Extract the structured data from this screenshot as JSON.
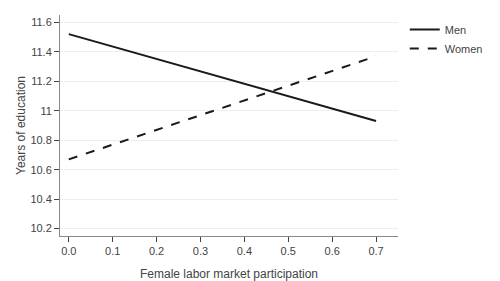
{
  "chart_data": {
    "type": "line",
    "xlabel": "Female labor market participation",
    "ylabel": "Years of education",
    "series": [
      {
        "name": "Men",
        "color": "#1a1a1a",
        "line_style": "solid",
        "x": [
          0,
          0.7
        ],
        "values": [
          11.52,
          10.93
        ]
      },
      {
        "name": "Women",
        "color": "#1a1a1a",
        "line_style": "dashed",
        "x": [
          0,
          0.7
        ],
        "values": [
          10.67,
          11.37
        ]
      }
    ],
    "xlim": [
      -0.02,
      0.75
    ],
    "ylim": [
      10.15,
      11.65
    ],
    "xticks": [
      {
        "value": 0,
        "label": "0.0"
      },
      0.1,
      0.2,
      0.3,
      0.4,
      0.5,
      0.6,
      0.7
    ],
    "yticks": [
      10.2,
      10.4,
      10.6,
      10.8,
      11,
      11.2,
      11.4,
      11.6
    ],
    "grid": true,
    "legend": "right"
  }
}
